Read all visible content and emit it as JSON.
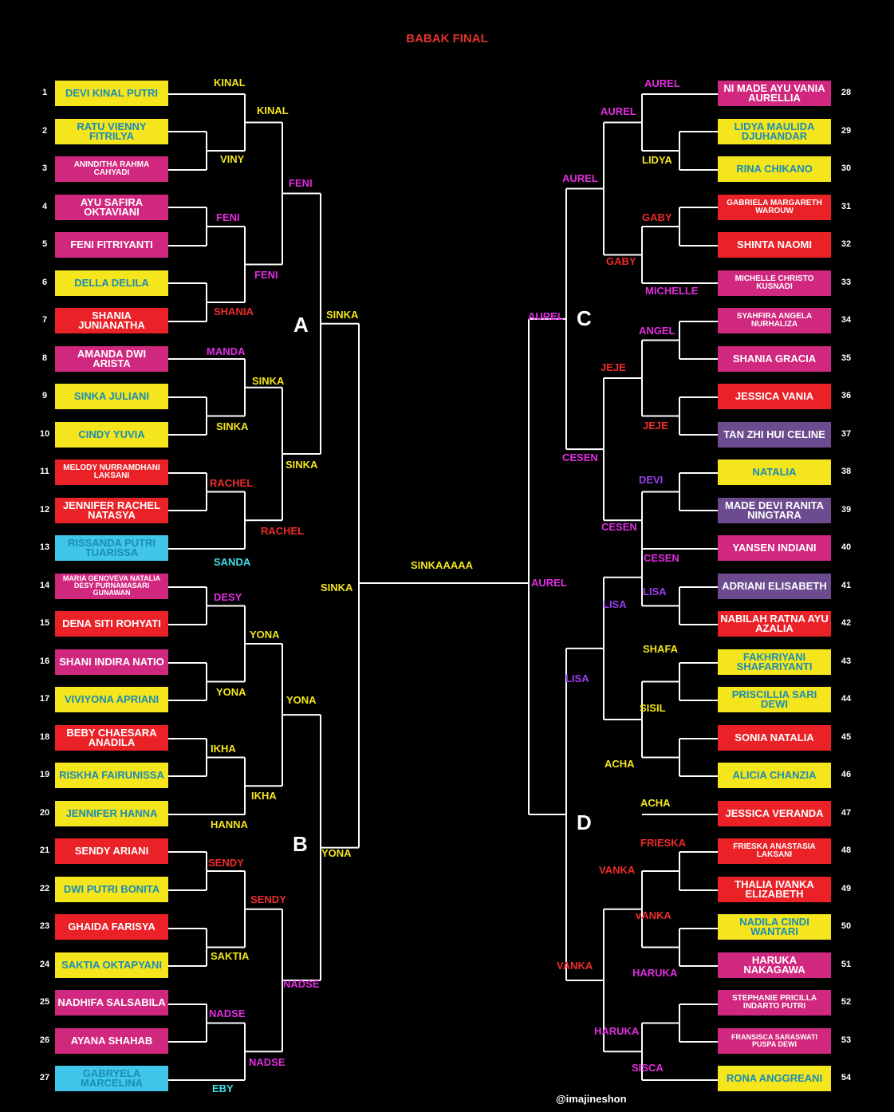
{
  "title": "BABAK FINAL",
  "credit": "@imajineshon",
  "colors": {
    "yellow": "#f4e51d",
    "pink": "#d1287f",
    "red": "#ea2228",
    "cyan": "#3fc6ea",
    "purple": "#6c4b8e",
    "text_teal": "#1b8db5",
    "text_white": "#ffffff",
    "label_yellow": "#f4e51d",
    "label_magenta": "#e22de0",
    "label_red": "#ee2b2b",
    "label_cyan": "#3ee0e6",
    "label_purple": "#9b3cf0",
    "line": "#ffffff"
  },
  "groups": [
    "A",
    "B",
    "C",
    "D"
  ],
  "final": "SINKAAAAA",
  "left_entrants": [
    {
      "n": "1",
      "name": "DEVI KINAL PUTRI",
      "bg": "yellow"
    },
    {
      "n": "2",
      "name": "RATU VIENNY FITRILYA",
      "bg": "yellow"
    },
    {
      "n": "3",
      "name": "ANINDITHA RAHMA CAHYADI",
      "bg": "pink",
      "size": "small"
    },
    {
      "n": "4",
      "name": "AYU SAFIRA OKTAVIANI",
      "bg": "pink"
    },
    {
      "n": "5",
      "name": "FENI FITRIYANTI",
      "bg": "pink"
    },
    {
      "n": "6",
      "name": "DELLA DELILA",
      "bg": "yellow"
    },
    {
      "n": "7",
      "name": "SHANIA JUNIANATHA",
      "bg": "red"
    },
    {
      "n": "8",
      "name": "AMANDA DWI ARISTA",
      "bg": "pink"
    },
    {
      "n": "9",
      "name": "SINKA JULIANI",
      "bg": "yellow"
    },
    {
      "n": "10",
      "name": "CINDY YUVIA",
      "bg": "yellow"
    },
    {
      "n": "11",
      "name": "MELODY NURRAMDHANI LAKSANI",
      "bg": "red",
      "size": "small"
    },
    {
      "n": "12",
      "name": "JENNIFER RACHEL NATASYA",
      "bg": "red"
    },
    {
      "n": "13",
      "name": "RISSANDA PUTRI TUARISSA",
      "bg": "cyan"
    },
    {
      "n": "14",
      "name": "MARIA GENOVEVA NATALIA DESY PURNAMASARI GUNAWAN",
      "bg": "pink",
      "size": "tiny"
    },
    {
      "n": "15",
      "name": "DENA SITI ROHYATI",
      "bg": "red"
    },
    {
      "n": "16",
      "name": "SHANI INDIRA NATIO",
      "bg": "pink"
    },
    {
      "n": "17",
      "name": "VIVIYONA APRIANI",
      "bg": "yellow"
    },
    {
      "n": "18",
      "name": "BEBY CHAESARA ANADILA",
      "bg": "red"
    },
    {
      "n": "19",
      "name": "RISKHA FAIRUNISSA",
      "bg": "yellow"
    },
    {
      "n": "20",
      "name": "JENNIFER HANNA",
      "bg": "yellow"
    },
    {
      "n": "21",
      "name": "SENDY ARIANI",
      "bg": "red"
    },
    {
      "n": "22",
      "name": "DWI PUTRI BONITA",
      "bg": "yellow"
    },
    {
      "n": "23",
      "name": "GHAIDA FARISYA",
      "bg": "red"
    },
    {
      "n": "24",
      "name": "SAKTIA OKTAPYANI",
      "bg": "yellow"
    },
    {
      "n": "25",
      "name": "NADHIFA SALSABILA",
      "bg": "pink"
    },
    {
      "n": "26",
      "name": "AYANA SHAHAB",
      "bg": "pink"
    },
    {
      "n": "27",
      "name": "GABRYELA MARCELINA",
      "bg": "cyan"
    }
  ],
  "right_entrants": [
    {
      "n": "28",
      "name": "NI MADE AYU VANIA AURELLIA",
      "bg": "pink"
    },
    {
      "n": "29",
      "name": "LIDYA MAULIDA DJUHANDAR",
      "bg": "yellow"
    },
    {
      "n": "30",
      "name": "RINA CHIKANO",
      "bg": "yellow"
    },
    {
      "n": "31",
      "name": "GABRIELA MARGARETH WAROUW",
      "bg": "red",
      "size": "small"
    },
    {
      "n": "32",
      "name": "SHINTA NAOMI",
      "bg": "red"
    },
    {
      "n": "33",
      "name": "MICHELLE CHRISTO KUSNADI",
      "bg": "pink",
      "size": "small"
    },
    {
      "n": "34",
      "name": "SYAHFIRA ANGELA NURHALIZA",
      "bg": "pink",
      "size": "small"
    },
    {
      "n": "35",
      "name": "SHANIA GRACIA",
      "bg": "pink"
    },
    {
      "n": "36",
      "name": "JESSICA VANIA",
      "bg": "red"
    },
    {
      "n": "37",
      "name": "TAN ZHI HUI CELINE",
      "bg": "purple"
    },
    {
      "n": "38",
      "name": "NATALIA",
      "bg": "yellow"
    },
    {
      "n": "39",
      "name": "MADE DEVI RANITA NINGTARA",
      "bg": "purple"
    },
    {
      "n": "40",
      "name": "YANSEN INDIANI",
      "bg": "pink"
    },
    {
      "n": "41",
      "name": "ADRIANI ELISABETH",
      "bg": "purple"
    },
    {
      "n": "42",
      "name": "NABILAH RATNA AYU AZALIA",
      "bg": "red"
    },
    {
      "n": "43",
      "name": "FAKHRIYANI SHAFARIYANTI",
      "bg": "yellow"
    },
    {
      "n": "44",
      "name": "PRISCILLIA SARI DEWI",
      "bg": "yellow"
    },
    {
      "n": "45",
      "name": "SONIA NATALIA",
      "bg": "red"
    },
    {
      "n": "46",
      "name": "ALICIA CHANZIA",
      "bg": "yellow"
    },
    {
      "n": "47",
      "name": "JESSICA VERANDA",
      "bg": "red"
    },
    {
      "n": "48",
      "name": "FRIESKA ANASTASIA LAKSANI",
      "bg": "red",
      "size": "small"
    },
    {
      "n": "49",
      "name": "THALIA IVANKA ELIZABETH",
      "bg": "red"
    },
    {
      "n": "50",
      "name": "NADILA CINDI WANTARI",
      "bg": "yellow"
    },
    {
      "n": "51",
      "name": "HARUKA NAKAGAWA",
      "bg": "pink"
    },
    {
      "n": "52",
      "name": "STEPHANIE PRICILLA INDARTO PUTRI",
      "bg": "pink",
      "size": "small"
    },
    {
      "n": "53",
      "name": "FRANSISCA SARASWATI PUSPA DEWI",
      "bg": "pink",
      "size": "tiny"
    },
    {
      "n": "54",
      "name": "RONA ANGGREANI",
      "bg": "yellow"
    }
  ],
  "winner_labels": [
    {
      "t": "KINAL",
      "c": "label_yellow"
    },
    {
      "t": "VINY",
      "c": "label_yellow"
    },
    {
      "t": "FENI",
      "c": "label_magenta"
    },
    {
      "t": "SHANIA",
      "c": "label_red"
    },
    {
      "t": "MANDA",
      "c": "label_magenta"
    },
    {
      "t": "SINKA",
      "c": "label_yellow"
    },
    {
      "t": "RACHEL",
      "c": "label_red"
    },
    {
      "t": "SANDA",
      "c": "label_cyan"
    },
    {
      "t": "KINAL",
      "c": "label_yellow"
    },
    {
      "t": "FENI",
      "c": "label_magenta"
    },
    {
      "t": "SINKA",
      "c": "label_yellow"
    },
    {
      "t": "RACHEL",
      "c": "label_red"
    },
    {
      "t": "FENI",
      "c": "label_magenta"
    },
    {
      "t": "SINKA",
      "c": "label_yellow"
    },
    {
      "t": "SINKA",
      "c": "label_yellow"
    },
    {
      "t": "DESY",
      "c": "label_magenta"
    },
    {
      "t": "YONA",
      "c": "label_yellow"
    },
    {
      "t": "IKHA",
      "c": "label_yellow"
    },
    {
      "t": "HANNA",
      "c": "label_yellow"
    },
    {
      "t": "SENDY",
      "c": "label_red"
    },
    {
      "t": "SAKTIA",
      "c": "label_yellow"
    },
    {
      "t": "NADSE",
      "c": "label_magenta"
    },
    {
      "t": "EBY",
      "c": "label_cyan"
    },
    {
      "t": "YONA",
      "c": "label_yellow"
    },
    {
      "t": "IKHA",
      "c": "label_yellow"
    },
    {
      "t": "SENDY",
      "c": "label_red"
    },
    {
      "t": "NADSE",
      "c": "label_magenta"
    },
    {
      "t": "YONA",
      "c": "label_yellow"
    },
    {
      "t": "NADSE",
      "c": "label_magenta"
    },
    {
      "t": "YONA",
      "c": "label_yellow"
    },
    {
      "t": "SINKA",
      "c": "label_yellow"
    },
    {
      "t": "AUREL",
      "c": "label_magenta"
    },
    {
      "t": "LIDYA",
      "c": "label_yellow"
    },
    {
      "t": "GABY",
      "c": "label_red"
    },
    {
      "t": "MICHELLE",
      "c": "label_magenta"
    },
    {
      "t": "AUREL",
      "c": "label_magenta"
    },
    {
      "t": "GABY",
      "c": "label_red"
    },
    {
      "t": "AUREL",
      "c": "label_magenta"
    },
    {
      "t": "ANGEL",
      "c": "label_magenta"
    },
    {
      "t": "JEJE",
      "c": "label_red"
    },
    {
      "t": "DEVI",
      "c": "label_purple"
    },
    {
      "t": "CESEN",
      "c": "label_magenta"
    },
    {
      "t": "JEJE",
      "c": "label_red"
    },
    {
      "t": "CESEN",
      "c": "label_magenta"
    },
    {
      "t": "CESEN",
      "c": "label_magenta"
    },
    {
      "t": "AUREL",
      "c": "label_magenta"
    },
    {
      "t": "LISA",
      "c": "label_purple"
    },
    {
      "t": "SHAFA",
      "c": "label_yellow"
    },
    {
      "t": "SISIL",
      "c": "label_yellow"
    },
    {
      "t": "ACHA",
      "c": "label_yellow"
    },
    {
      "t": "LISA",
      "c": "label_purple"
    },
    {
      "t": "ACHA",
      "c": "label_yellow"
    },
    {
      "t": "LISA",
      "c": "label_purple"
    },
    {
      "t": "FRIESKA",
      "c": "label_red"
    },
    {
      "t": "vANKA",
      "c": "label_red"
    },
    {
      "t": "HARUKA",
      "c": "label_magenta"
    },
    {
      "t": "SISCA",
      "c": "label_magenta"
    },
    {
      "t": "VANKA",
      "c": "label_red"
    },
    {
      "t": "HARUKA",
      "c": "label_magenta"
    },
    {
      "t": "VANKA",
      "c": "label_red"
    },
    {
      "t": "AUREL",
      "c": "label_magenta"
    }
  ]
}
